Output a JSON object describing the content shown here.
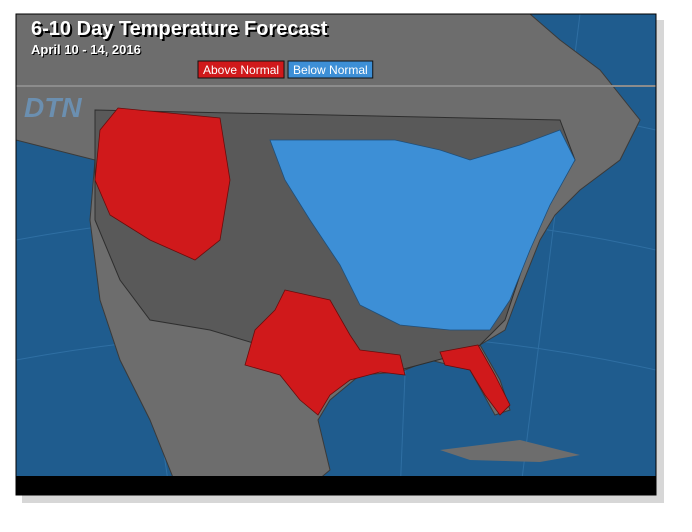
{
  "header": {
    "title": "6-10 Day Temperature Forecast",
    "subtitle": "April 10 - 14, 2016"
  },
  "legend": {
    "items": [
      {
        "label": "Above Normal",
        "color": "#d0191b"
      },
      {
        "label": "Below Normal",
        "color": "#3d8fd6"
      }
    ]
  },
  "logo": "DTN"
}
